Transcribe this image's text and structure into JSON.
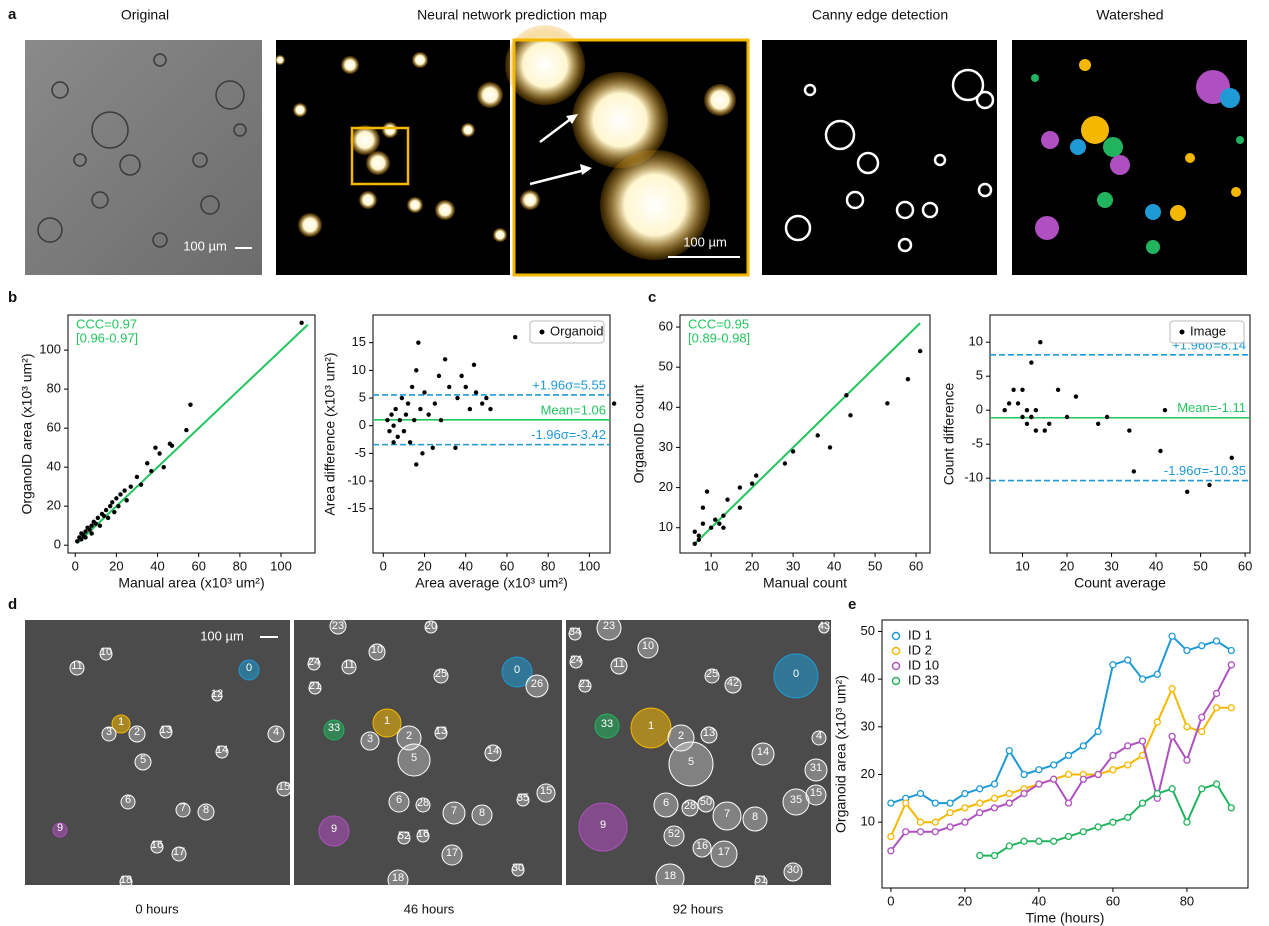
{
  "panel_labels": [
    "a",
    "b",
    "c",
    "d",
    "e"
  ],
  "panel_a": {
    "titles": [
      "Original",
      "Neural network prediction map",
      "Canny edge detection",
      "Watershed"
    ],
    "scale_labels": [
      "100 µm",
      "100 µm"
    ]
  },
  "panel_d": {
    "scale_label": "100 µm",
    "frames": [
      {
        "caption": "0 hours",
        "labels": [
          "11",
          "10",
          "0",
          "12",
          "1",
          "3",
          "2",
          "13",
          "4",
          "14",
          "5",
          "15",
          "6",
          "7",
          "8",
          "9",
          "16",
          "17",
          "18"
        ]
      },
      {
        "caption": "46 hours",
        "labels": [
          "23",
          "20",
          "24",
          "11",
          "10",
          "25",
          "0",
          "26",
          "21",
          "33",
          "1",
          "3",
          "2",
          "13",
          "14",
          "5",
          "15",
          "35",
          "6",
          "28",
          "7",
          "8",
          "9",
          "52",
          "16",
          "17",
          "30",
          "18"
        ]
      },
      {
        "caption": "92 hours",
        "labels": [
          "34",
          "23",
          "10",
          "43",
          "24",
          "11",
          "25",
          "42",
          "0",
          "21",
          "33",
          "1",
          "2",
          "13",
          "14",
          "4",
          "5",
          "31",
          "15",
          "35",
          "6",
          "28",
          "50",
          "7",
          "8",
          "9",
          "52",
          "16",
          "17",
          "30",
          "18",
          "51"
        ]
      }
    ]
  },
  "chart_data": [
    {
      "type": "scatter",
      "xlabel": "Manual area (x10³ um²)",
      "ylabel": "OrganoID area (x10³ um²)",
      "xlim": [
        -3.5,
        116.5
      ],
      "ylim": [
        -4,
        118
      ],
      "xticks": [
        0,
        20,
        40,
        60,
        80,
        100
      ],
      "yticks": [
        0,
        20,
        40,
        60,
        80,
        100
      ],
      "annotations": [
        "CCC=0.97",
        "[0.96-0.97]"
      ],
      "annotation_color": "#22c55e",
      "series": [
        {
          "color": "#000000",
          "x": [
            1,
            2,
            3,
            3,
            4,
            5,
            5,
            6,
            7,
            8,
            8,
            9,
            10,
            11,
            12,
            13,
            14,
            15,
            16,
            17,
            18,
            19,
            20,
            21,
            22,
            24,
            25,
            27,
            30,
            32,
            35,
            37,
            39,
            41,
            43,
            46,
            47,
            54,
            56,
            110
          ],
          "values": [
            2,
            4,
            3,
            6,
            5,
            7,
            4,
            9,
            8,
            10,
            6,
            12,
            11,
            14,
            10,
            16,
            15,
            18,
            14,
            20,
            22,
            17,
            24,
            20,
            26,
            28,
            23,
            30,
            35,
            31,
            42,
            38,
            50,
            47,
            40,
            52,
            51,
            59,
            72,
            114
          ]
        }
      ],
      "fit_line": {
        "color": "#22c55e",
        "x": [
          1,
          113
        ],
        "y": [
          1,
          113
        ]
      }
    },
    {
      "type": "scatter",
      "xlabel": "Area average (x10³ um²)",
      "ylabel": "Area difference (x10³ um²)",
      "xlim": [
        -5,
        110
      ],
      "ylim": [
        -23,
        20
      ],
      "xticks": [
        0,
        20,
        40,
        60,
        80,
        100
      ],
      "yticks": [
        -15,
        -10,
        -5,
        0,
        5,
        10,
        15
      ],
      "legend": "upper right",
      "series": [
        {
          "name": "Organoid",
          "color": "#000000",
          "x": [
            2,
            3,
            4,
            5,
            6,
            7,
            8,
            9,
            10,
            11,
            12,
            13,
            14,
            15,
            16,
            17,
            18,
            19,
            20,
            22,
            24,
            25,
            27,
            28,
            30,
            32,
            35,
            36,
            38,
            40,
            42,
            44,
            45,
            48,
            50,
            52,
            64,
            112,
            16,
            5
          ],
          "values": [
            1,
            -1,
            2,
            0,
            3,
            -2,
            1,
            5,
            -1,
            2,
            4,
            -3,
            7,
            1,
            10,
            15,
            3,
            -5,
            6,
            2,
            -4,
            4,
            9,
            1,
            12,
            7,
            -4,
            5,
            9,
            7,
            3,
            11,
            6,
            4,
            5,
            3,
            16,
            4,
            -7,
            -3
          ]
        }
      ],
      "hlines": [
        {
          "value": 5.55,
          "label": "+1.96σ=5.55",
          "color": "#1f9ad6",
          "style": "dashed"
        },
        {
          "value": 1.06,
          "label": "Mean=1.06",
          "color": "#22c55e",
          "style": "solid"
        },
        {
          "value": -3.42,
          "label": "-1.96σ=-3.42",
          "color": "#1f9ad6",
          "style": "dashed"
        }
      ]
    },
    {
      "type": "scatter",
      "xlabel": "Manual count",
      "ylabel": "OrganoID count",
      "xlim": [
        2.4,
        63.4
      ],
      "ylim": [
        3.7,
        63
      ],
      "xticks": [
        10,
        20,
        30,
        40,
        50,
        60
      ],
      "yticks": [
        10,
        20,
        30,
        40,
        50,
        60
      ],
      "annotations": [
        "CCC=0.95",
        "[0.89-0.98]"
      ],
      "annotation_color": "#22c55e",
      "series": [
        {
          "color": "#000000",
          "x": [
            6,
            6,
            7,
            7,
            8,
            8,
            9,
            10,
            11,
            12,
            13,
            13,
            14,
            17,
            17,
            20,
            21,
            28,
            30,
            36,
            39,
            43,
            44,
            53,
            58,
            61
          ],
          "values": [
            6,
            9,
            8,
            7,
            11,
            15,
            19,
            10,
            12,
            11,
            10,
            13,
            17,
            15,
            20,
            21,
            23,
            26,
            29,
            33,
            30,
            43,
            38,
            41,
            47,
            54
          ]
        }
      ],
      "fit_line": {
        "color": "#22c55e",
        "x": [
          6,
          61
        ],
        "y": [
          6,
          61
        ]
      }
    },
    {
      "type": "scatter",
      "xlabel": "Count average",
      "ylabel": "Count difference",
      "xlim": [
        2.7,
        61.1
      ],
      "ylim": [
        -21,
        14
      ],
      "xticks": [
        10,
        20,
        30,
        40,
        50,
        60
      ],
      "yticks": [
        -10,
        -5,
        0,
        5,
        10
      ],
      "legend": "upper right",
      "series": [
        {
          "name": "Image",
          "color": "#000000",
          "x": [
            6,
            7,
            8,
            9,
            10,
            10,
            11,
            11,
            12,
            12,
            12,
            13,
            13,
            14,
            15,
            16,
            18,
            20,
            22,
            27,
            29,
            34,
            35,
            41,
            42,
            47,
            52,
            57
          ],
          "values": [
            0,
            1,
            3,
            1,
            3,
            -1,
            0,
            -2,
            7,
            -1,
            -1,
            0,
            -3,
            10,
            -3,
            -2,
            3,
            -1,
            2,
            -2,
            -1,
            -3,
            -9,
            -6,
            0,
            -12,
            -11,
            -7
          ]
        }
      ],
      "hlines": [
        {
          "value": 8.14,
          "label": "+1.96σ=8.14",
          "color": "#1f9ad6",
          "style": "dashed"
        },
        {
          "value": -1.11,
          "label": "Mean=-1.11",
          "color": "#22c55e",
          "style": "solid"
        },
        {
          "value": -10.35,
          "label": "-1.96σ=-10.35",
          "color": "#1f9ad6",
          "style": "dashed"
        }
      ]
    },
    {
      "type": "line",
      "xlabel": "Time (hours)",
      "ylabel": "Organoid area (x10³ um²)",
      "xlim": [
        -2.4,
        96.5
      ],
      "ylim": [
        -3.8,
        52.4
      ],
      "xticks": [
        0,
        20,
        40,
        60,
        80
      ],
      "yticks": [
        10,
        20,
        30,
        40,
        50
      ],
      "legend": "upper left",
      "x": [
        0,
        4,
        8,
        12,
        16,
        20,
        24,
        28,
        32,
        36,
        40,
        44,
        48,
        52,
        56,
        60,
        64,
        68,
        72,
        76,
        80,
        84,
        88,
        92
      ],
      "series": [
        {
          "name": "ID 1",
          "color": "#1f9ad6",
          "values": [
            14,
            15,
            16,
            14,
            14,
            16,
            17,
            18,
            25,
            20,
            21,
            22,
            24,
            26,
            29,
            43,
            44,
            40,
            41,
            49,
            46,
            47,
            48,
            46
          ]
        },
        {
          "name": "ID 2",
          "color": "#f5b800",
          "values": [
            7,
            14,
            10,
            10,
            12,
            13,
            14,
            15,
            16,
            17,
            18,
            19,
            20,
            20,
            20,
            21,
            22,
            24,
            31,
            38,
            30,
            29,
            34,
            34
          ]
        },
        {
          "name": "ID 10",
          "color": "#b04fc0",
          "values": [
            4,
            8,
            8,
            8,
            9,
            10,
            12,
            13,
            14,
            16,
            18,
            19,
            14,
            19,
            20,
            24,
            26,
            27,
            15,
            28,
            23,
            32,
            37,
            43
          ]
        },
        {
          "name": "ID 33",
          "color": "#22b35e",
          "values": [
            null,
            null,
            null,
            null,
            null,
            null,
            3,
            3,
            5,
            6,
            6,
            6,
            7,
            8,
            9,
            10,
            11,
            14,
            16,
            17,
            10,
            17,
            18,
            13
          ]
        }
      ]
    }
  ]
}
